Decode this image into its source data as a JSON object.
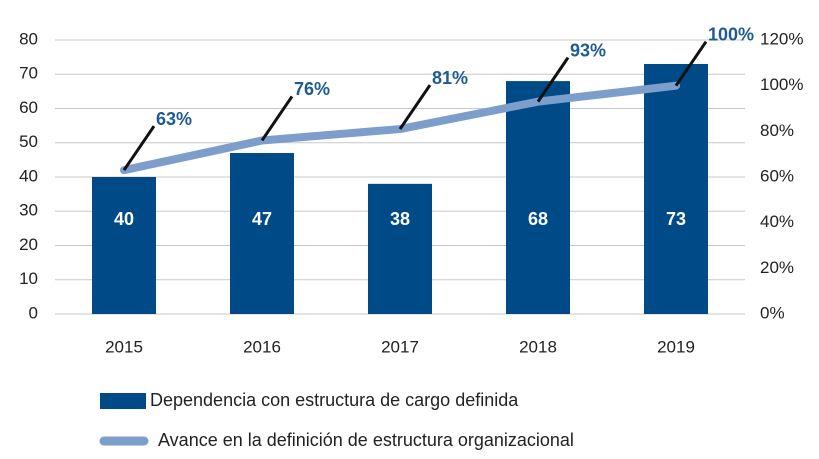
{
  "chart_data": {
    "type": "bar",
    "categories": [
      "2015",
      "2016",
      "2017",
      "2018",
      "2019"
    ],
    "series": [
      {
        "name": "Dependencia con estructura de cargo definida",
        "color": "#004a87",
        "values": [
          40,
          47,
          38,
          68,
          73
        ]
      },
      {
        "name": "Avance en la definición de estructura organizacional",
        "color": "#7d9ecb",
        "axis": "y2",
        "type": "line",
        "values": [
          63,
          76,
          81,
          93,
          100
        ],
        "value_labels": [
          "63%",
          "76%",
          "81%",
          "93%",
          "100%"
        ]
      }
    ],
    "ylim": [
      0,
      80
    ],
    "yticks": [
      0,
      10,
      20,
      30,
      40,
      50,
      60,
      70,
      80
    ],
    "y2lim": [
      0,
      120
    ],
    "y2ticks": [
      {
        "value": 0,
        "label": "0%"
      },
      {
        "value": 20,
        "label": "20%"
      },
      {
        "value": 40,
        "label": "40%"
      },
      {
        "value": 60,
        "label": "60%"
      },
      {
        "value": 80,
        "label": "80%"
      },
      {
        "value": 100,
        "label": "100%"
      },
      {
        "value": 120,
        "label": "120%"
      }
    ],
    "grid": true
  }
}
